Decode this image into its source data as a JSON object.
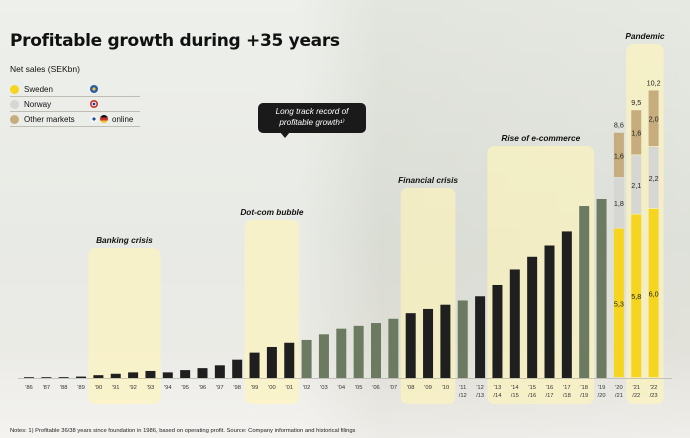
{
  "title": "Profitable growth during +35 years",
  "subtitle": "Net sales (SEKbn)",
  "legend": [
    {
      "label": "Sweden",
      "color": "#f5d51f",
      "flag": "se"
    },
    {
      "label": "Norway",
      "color": "#d6d6d2",
      "flag": "no"
    },
    {
      "label": "Other markets",
      "color": "#c7ac7e",
      "flag": "fi-de",
      "extra": "online"
    }
  ],
  "callout": {
    "line1": "Long track record of",
    "line2": "profitable growth¹⁾"
  },
  "eras": [
    {
      "label": "Banking crisis",
      "from": 4,
      "to": 7
    },
    {
      "label": "Dot-com bubble",
      "from": 13,
      "to": 15
    },
    {
      "label": "Financial crisis",
      "from": 22,
      "to": 24
    },
    {
      "label": "Rise of e-commerce",
      "from": 27,
      "to": 32
    },
    {
      "label": "Pandemic",
      "from": 35,
      "to": 36
    }
  ],
  "notes": "Notes: 1) Profitable 36/38 years since foundation in 1986, based on operating profit. Source: Company information and historical filings",
  "colors": {
    "dark_bar": "#1f1f1f",
    "green_bar": "#6d7a62",
    "sweden": "#f5d51f",
    "norway": "#d6d6d2",
    "other": "#c7ac7e",
    "era_box": "#fff6b8"
  },
  "chart_data": {
    "type": "bar",
    "title": "Profitable growth during +35 years",
    "ylabel": "Net sales (SEKbn)",
    "categories": [
      "'86",
      "'87",
      "'88",
      "'89",
      "'90",
      "'91",
      "'92",
      "'93",
      "'94",
      "'95",
      "'96",
      "'97",
      "'98",
      "'99",
      "'00",
      "'01",
      "'02",
      "'03",
      "'04",
      "'05",
      "'06",
      "'07",
      "'08",
      "'09",
      "'10",
      "'11\n/12",
      "'12\n/13",
      "'13\n/14",
      "'14\n/15",
      "'15\n/16",
      "'16\n/17",
      "'17\n/18",
      "'18\n/19",
      "'19\n/20",
      "'20\n/21",
      "'21\n/22",
      "'22\n/23"
    ],
    "values": [
      0.01,
      0.02,
      0.03,
      0.05,
      0.1,
      0.15,
      0.2,
      0.25,
      0.2,
      0.28,
      0.35,
      0.45,
      0.65,
      0.9,
      1.1,
      1.25,
      1.35,
      1.55,
      1.75,
      1.85,
      1.95,
      2.1,
      2.3,
      2.45,
      2.6,
      2.75,
      2.9,
      3.3,
      3.85,
      4.3,
      4.7,
      5.2,
      6.1,
      6.35,
      8.6,
      9.5,
      10.2
    ],
    "bar_style": [
      "dark",
      "dark",
      "dark",
      "dark",
      "dark",
      "dark",
      "dark",
      "dark",
      "dark",
      "dark",
      "dark",
      "dark",
      "dark",
      "dark",
      "dark",
      "dark",
      "green",
      "green",
      "green",
      "green",
      "green",
      "green",
      "dark",
      "dark",
      "dark",
      "green",
      "dark",
      "dark",
      "dark",
      "dark",
      "dark",
      "dark",
      "green",
      "green",
      "stacked",
      "stacked",
      "stacked"
    ],
    "stacked": {
      "categories": [
        "'20\n/21",
        "'21\n/22",
        "'22\n/23"
      ],
      "series": [
        {
          "name": "Sweden",
          "values": [
            5.3,
            5.8,
            6.0
          ]
        },
        {
          "name": "Norway",
          "values": [
            1.8,
            2.1,
            2.2
          ]
        },
        {
          "name": "Other markets",
          "values": [
            1.6,
            1.6,
            2.0
          ]
        }
      ],
      "totals": [
        8.6,
        9.5,
        10.2
      ],
      "data_labels": {
        "Sweden": [
          "5,3",
          "5,8",
          "6,0"
        ],
        "Norway": [
          "1,8",
          "2,1",
          "2,2"
        ],
        "Other markets": [
          "1,6",
          "1,6",
          "2,0"
        ],
        "totals": [
          "8,6",
          "9,5",
          "10,2"
        ]
      }
    },
    "ylim": [
      0,
      10.5
    ],
    "grid": false,
    "legend_position": "top-left"
  }
}
